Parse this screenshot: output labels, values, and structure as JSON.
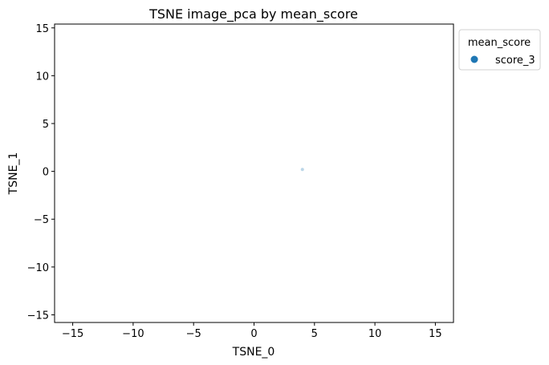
{
  "chart_data": {
    "type": "scatter",
    "title": "TSNE image_pca by mean_score",
    "xlabel": "TSNE_0",
    "ylabel": "TSNE_1",
    "xlim": [
      -16.5,
      16.5
    ],
    "ylim": [
      -15.8,
      15.4
    ],
    "xticks": [
      -15,
      -10,
      -5,
      0,
      5,
      10,
      15
    ],
    "yticks": [
      -15,
      -10,
      -5,
      0,
      5,
      10,
      15
    ],
    "grid": false,
    "legend": {
      "title": "mean_score",
      "placement": "outside-top-right",
      "entries": [
        {
          "label": "score_3",
          "color": "#1f77b4"
        }
      ]
    },
    "series": [
      {
        "name": "score_3",
        "color": "#1f77b4",
        "opacity": 0.3,
        "points": [
          {
            "x": 4.0,
            "y": 0.2
          }
        ]
      }
    ]
  }
}
